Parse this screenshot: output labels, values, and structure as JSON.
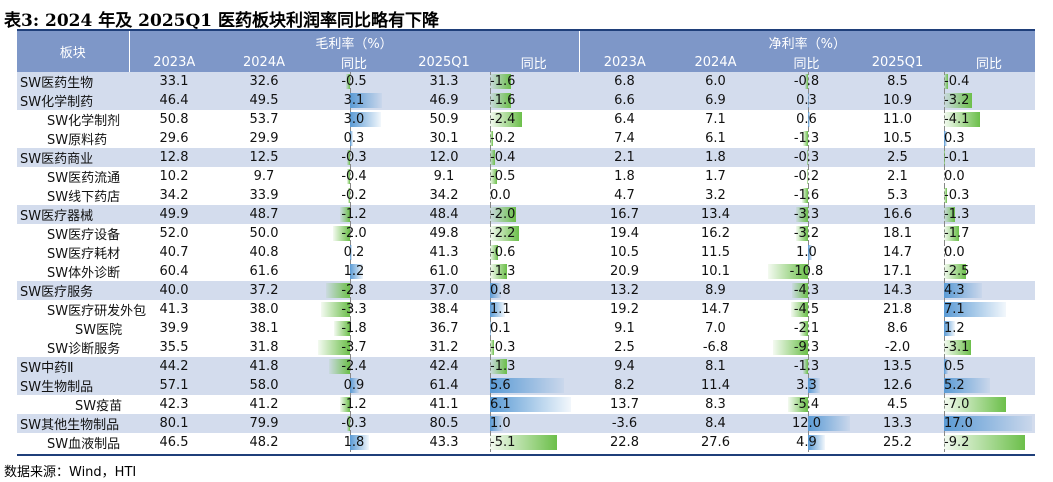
{
  "title": "表3:  2024 年及 2025Q1 医药板块利润率同比略有下降",
  "source": "数据来源：Wind，HTI",
  "header": {
    "sector": "板块",
    "gross_group": "毛利率（%）",
    "net_group": "净利率（%）",
    "cols": [
      "2023A",
      "2024A",
      "同比",
      "2025Q1",
      "同比"
    ]
  },
  "colors": {
    "header_bg": "#7e97c8",
    "row_shade": "#d3dced",
    "positive_bar": "#5b9bd5",
    "negative_bar": "#6cbf4a"
  },
  "rows": [
    {
      "name": "SW医药生物",
      "level": 0,
      "gm": [
        "33.1",
        "32.6",
        "-0.5",
        "31.3",
        "-1.6"
      ],
      "nm": [
        "6.8",
        "6.0",
        "-0.8",
        "8.5",
        "-0.4"
      ]
    },
    {
      "name": "SW化学制药",
      "level": 0,
      "gm": [
        "46.4",
        "49.5",
        "3.1",
        "46.9",
        "-1.6"
      ],
      "nm": [
        "6.6",
        "6.9",
        "0.3",
        "10.9",
        "-3.2"
      ]
    },
    {
      "name": "SW化学制剂",
      "level": 1,
      "gm": [
        "50.8",
        "53.7",
        "3.0",
        "50.9",
        "-2.4"
      ],
      "nm": [
        "6.4",
        "7.1",
        "0.6",
        "11.0",
        "-4.1"
      ]
    },
    {
      "name": "SW原料药",
      "level": 1,
      "gm": [
        "29.6",
        "29.9",
        "0.3",
        "30.1",
        "-0.2"
      ],
      "nm": [
        "7.4",
        "6.1",
        "-1.3",
        "10.5",
        "0.3"
      ]
    },
    {
      "name": "SW医药商业",
      "level": 0,
      "gm": [
        "12.8",
        "12.5",
        "-0.3",
        "12.0",
        "-0.4"
      ],
      "nm": [
        "2.1",
        "1.8",
        "-0.3",
        "2.5",
        "-0.1"
      ]
    },
    {
      "name": "SW医药流通",
      "level": 1,
      "gm": [
        "10.2",
        "9.7",
        "-0.4",
        "9.1",
        "-0.5"
      ],
      "nm": [
        "1.8",
        "1.7",
        "-0.2",
        "2.1",
        "0.0"
      ]
    },
    {
      "name": "SW线下药店",
      "level": 1,
      "gm": [
        "34.2",
        "33.9",
        "-0.2",
        "34.2",
        "0.0"
      ],
      "nm": [
        "4.7",
        "3.2",
        "-1.6",
        "5.3",
        "-0.3"
      ]
    },
    {
      "name": "SW医疗器械",
      "level": 0,
      "gm": [
        "49.9",
        "48.7",
        "-1.2",
        "48.4",
        "-2.0"
      ],
      "nm": [
        "16.7",
        "13.4",
        "-3.3",
        "16.6",
        "-1.3"
      ]
    },
    {
      "name": "SW医疗设备",
      "level": 1,
      "gm": [
        "52.0",
        "50.0",
        "-2.0",
        "49.8",
        "-2.2"
      ],
      "nm": [
        "19.4",
        "16.2",
        "-3.2",
        "18.1",
        "-1.7"
      ]
    },
    {
      "name": "SW医疗耗材",
      "level": 1,
      "gm": [
        "40.7",
        "40.8",
        "0.2",
        "41.3",
        "-0.6"
      ],
      "nm": [
        "10.5",
        "11.5",
        "1.0",
        "14.7",
        "0.0"
      ]
    },
    {
      "name": "SW体外诊断",
      "level": 1,
      "gm": [
        "60.4",
        "61.6",
        "1.2",
        "61.0",
        "-1.3"
      ],
      "nm": [
        "20.9",
        "10.1",
        "-10.8",
        "17.1",
        "-2.5"
      ]
    },
    {
      "name": "SW医疗服务",
      "level": 0,
      "gm": [
        "40.0",
        "37.2",
        "-2.8",
        "37.0",
        "0.8"
      ],
      "nm": [
        "13.2",
        "8.9",
        "-4.3",
        "14.3",
        "4.3"
      ]
    },
    {
      "name": "SW医疗研发外包",
      "level": 1,
      "gm": [
        "41.3",
        "38.0",
        "-3.3",
        "38.4",
        "1.1"
      ],
      "nm": [
        "19.2",
        "14.7",
        "-4.5",
        "21.8",
        "7.1"
      ]
    },
    {
      "name": "SW医院",
      "level": 2,
      "gm": [
        "39.9",
        "38.1",
        "-1.8",
        "36.7",
        "0.1"
      ],
      "nm": [
        "9.1",
        "7.0",
        "-2.1",
        "8.6",
        "1.2"
      ]
    },
    {
      "name": "SW诊断服务",
      "level": 1,
      "gm": [
        "35.5",
        "31.8",
        "-3.7",
        "31.2",
        "-0.3"
      ],
      "nm": [
        "2.5",
        "-6.8",
        "-9.3",
        "-2.0",
        "-3.1"
      ]
    },
    {
      "name": "SW中药Ⅱ",
      "level": 0,
      "gm": [
        "44.2",
        "41.8",
        "-2.4",
        "42.4",
        "-1.3"
      ],
      "nm": [
        "9.4",
        "8.1",
        "-1.3",
        "13.5",
        "0.5"
      ]
    },
    {
      "name": "SW生物制品",
      "level": 0,
      "gm": [
        "57.1",
        "58.0",
        "0.9",
        "61.4",
        "5.6"
      ],
      "nm": [
        "8.2",
        "11.4",
        "3.3",
        "12.6",
        "5.2"
      ]
    },
    {
      "name": "SW疫苗",
      "level": 2,
      "gm": [
        "42.3",
        "41.2",
        "-1.2",
        "41.1",
        "6.1"
      ],
      "nm": [
        "13.7",
        "8.3",
        "-5.4",
        "4.5",
        "-7.0"
      ]
    },
    {
      "name": "SW其他生物制品",
      "level": 0,
      "gm": [
        "80.1",
        "79.9",
        "-0.3",
        "80.5",
        "1.0"
      ],
      "nm": [
        "-3.6",
        "8.4",
        "12.0",
        "13.3",
        "17.0"
      ]
    },
    {
      "name": "SW血液制品",
      "level": 1,
      "gm": [
        "46.5",
        "48.2",
        "1.8",
        "43.3",
        "-5.1"
      ],
      "nm": [
        "22.8",
        "27.6",
        "4.9",
        "25.2",
        "-9.2"
      ]
    }
  ]
}
